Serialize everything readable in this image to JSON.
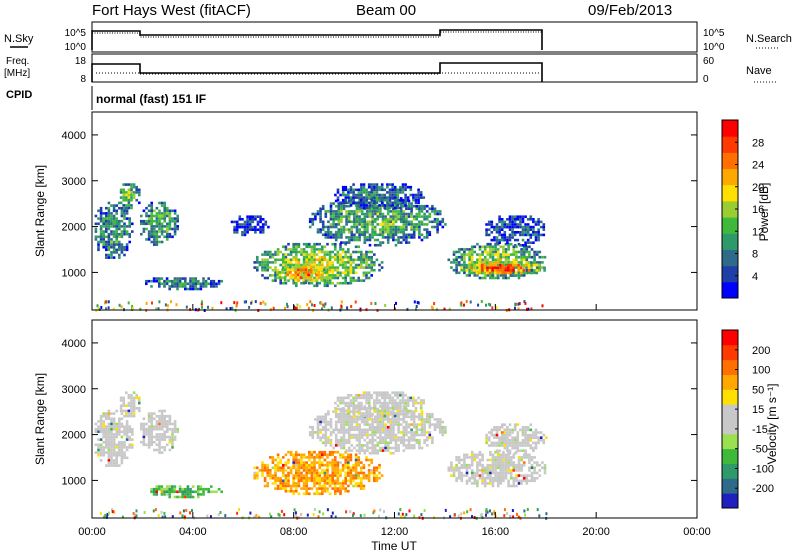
{
  "header": {
    "station": "Fort Hays West (fitACF)",
    "beam": "Beam 00",
    "date": "09/Feb/2013"
  },
  "side_labels": {
    "nsky": "N.Sky",
    "nsearch": "N.Search",
    "freq_line1": "Freq.",
    "freq_line2": "[MHz]",
    "nave": "Nave",
    "cpid": "CPID",
    "cpid_value": "normal (fast) 151 IF"
  },
  "small_axes": {
    "noise_ticks_left": [
      "10^5",
      "10^0"
    ],
    "noise_ticks_right": [
      "10^5",
      "10^0"
    ],
    "freq_ticks_left": [
      "18",
      "8"
    ],
    "nave_ticks_right": [
      "60",
      "0"
    ]
  },
  "chart_data": [
    {
      "type": "heatmap",
      "name": "power",
      "ylabel": "Slant Range [km]",
      "ylim": [
        180,
        4500
      ],
      "yticks": [
        "1000",
        "2000",
        "3000",
        "4000"
      ],
      "xlim": [
        0,
        24
      ],
      "colorbar": {
        "label": "Power [dB]",
        "ticks": [
          "28",
          "24",
          "20",
          "16",
          "12",
          "8",
          "4"
        ],
        "colors": [
          "#0000ff",
          "#1f3fa8",
          "#2e6b8a",
          "#2e9a6a",
          "#3fb93a",
          "#9acd32",
          "#ffe000",
          "#ffa800",
          "#ff7000",
          "#ff3a00",
          "#ff0000"
        ]
      },
      "regions": [
        {
          "t0": 0.0,
          "t1": 1.6,
          "r0": 1300,
          "r1": 2600,
          "level": 0.35
        },
        {
          "t0": 1.0,
          "t1": 1.9,
          "r0": 2400,
          "r1": 3000,
          "level": 0.45
        },
        {
          "t0": 1.8,
          "t1": 3.4,
          "r0": 1600,
          "r1": 2600,
          "level": 0.4
        },
        {
          "t0": 2.0,
          "t1": 5.2,
          "r0": 650,
          "r1": 950,
          "level": 0.3
        },
        {
          "t0": 5.4,
          "t1": 7.0,
          "r0": 1800,
          "r1": 2300,
          "level": 0.15
        },
        {
          "t0": 6.3,
          "t1": 11.5,
          "r0": 700,
          "r1": 1700,
          "level": 0.55
        },
        {
          "t0": 7.2,
          "t1": 9.5,
          "r0": 800,
          "r1": 1200,
          "level": 0.8
        },
        {
          "t0": 8.5,
          "t1": 14.0,
          "r0": 1600,
          "r1": 2700,
          "level": 0.4
        },
        {
          "t0": 9.5,
          "t1": 13.2,
          "r0": 2400,
          "r1": 3000,
          "level": 0.25
        },
        {
          "t0": 14.0,
          "t1": 18.0,
          "r0": 850,
          "r1": 1700,
          "level": 0.5
        },
        {
          "t0": 14.5,
          "t1": 18.0,
          "r0": 950,
          "r1": 1300,
          "level": 0.85
        },
        {
          "t0": 15.5,
          "t1": 18.0,
          "r0": 1600,
          "r1": 2300,
          "level": 0.2
        }
      ]
    },
    {
      "type": "heatmap",
      "name": "velocity",
      "ylabel": "Slant Range [km]",
      "xlabel": "Time UT",
      "ylim": [
        180,
        4500
      ],
      "yticks": [
        "1000",
        "2000",
        "3000",
        "4000"
      ],
      "xlim": [
        0,
        24
      ],
      "xticks": [
        "00:00",
        "04:00",
        "08:00",
        "12:00",
        "16:00",
        "20:00",
        "00:00"
      ],
      "colorbar": {
        "label": "Velocity [m s⁻¹]",
        "ticks": [
          "200",
          "100",
          "50",
          "15",
          "-15",
          "-50",
          "-100",
          "-200"
        ],
        "colors": [
          "#2020c0",
          "#2e6b8a",
          "#2e9a6a",
          "#3fb93a",
          "#9be050",
          "#c8c8c8",
          "#c8c8c8",
          "#ffe000",
          "#ffa800",
          "#ff7000",
          "#ff3a00",
          "#ff0000"
        ]
      },
      "regions": [
        {
          "t0": 0.0,
          "t1": 1.6,
          "r0": 1300,
          "r1": 2600,
          "level": 0.5
        },
        {
          "t0": 1.0,
          "t1": 1.9,
          "r0": 2400,
          "r1": 3000,
          "level": 0.5
        },
        {
          "t0": 1.8,
          "t1": 3.4,
          "r0": 1600,
          "r1": 2600,
          "level": 0.5
        },
        {
          "t0": 2.0,
          "t1": 5.2,
          "r0": 650,
          "r1": 950,
          "level": 0.3
        },
        {
          "t0": 6.3,
          "t1": 11.5,
          "r0": 700,
          "r1": 1700,
          "level": 0.72
        },
        {
          "t0": 8.5,
          "t1": 14.0,
          "r0": 1600,
          "r1": 2700,
          "level": 0.5
        },
        {
          "t0": 9.5,
          "t1": 13.2,
          "r0": 2400,
          "r1": 3000,
          "level": 0.5
        },
        {
          "t0": 14.0,
          "t1": 18.0,
          "r0": 850,
          "r1": 1700,
          "level": 0.5
        },
        {
          "t0": 15.5,
          "t1": 18.0,
          "r0": 1600,
          "r1": 2300,
          "level": 0.5
        }
      ]
    }
  ]
}
